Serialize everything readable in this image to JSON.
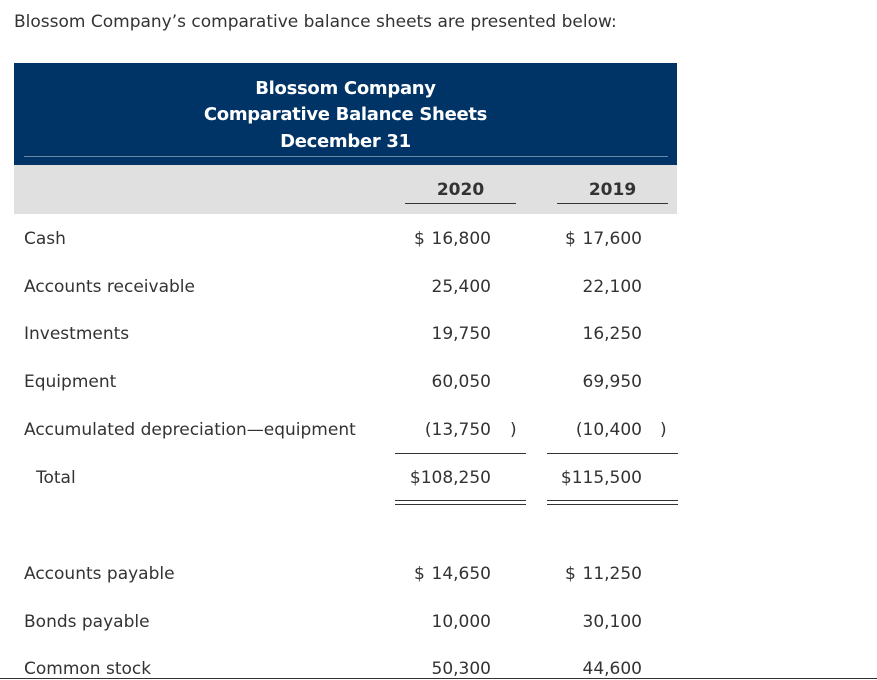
{
  "intro": "Blossom Company’s comparative balance sheets are presented below:",
  "header": {
    "company": "Blossom Company",
    "title": "Comparative Balance Sheets",
    "date": "December 31"
  },
  "columns": [
    "2020",
    "2019"
  ],
  "assets": [
    {
      "label": "Cash",
      "cells": [
        {
          "prefix": "$",
          "amount": "16,800"
        },
        {
          "prefix": "$",
          "amount": "17,600"
        }
      ]
    },
    {
      "label": "Accounts receivable",
      "cells": [
        {
          "amount": "25,400"
        },
        {
          "amount": "22,100"
        }
      ]
    },
    {
      "label": "Investments",
      "cells": [
        {
          "amount": "19,750"
        },
        {
          "amount": "16,250"
        }
      ]
    },
    {
      "label": "Equipment",
      "cells": [
        {
          "amount": "60,050"
        },
        {
          "amount": "69,950"
        }
      ]
    },
    {
      "label": "Accumulated depreciation—equipment",
      "cells": [
        {
          "amount": "(13,750",
          "suffix": ")"
        },
        {
          "amount": "(10,400",
          "suffix": ")"
        }
      ]
    },
    {
      "label": "Total",
      "cells": [
        {
          "amount": "$108,250"
        },
        {
          "amount": "$115,500"
        }
      ]
    }
  ],
  "liabilities": [
    {
      "label": "Accounts payable",
      "cells": [
        {
          "prefix": "$",
          "amount": "14,650"
        },
        {
          "prefix": "$",
          "amount": "11,250"
        }
      ]
    },
    {
      "label": "Bonds payable",
      "cells": [
        {
          "amount": "10,000"
        },
        {
          "amount": "30,100"
        }
      ]
    },
    {
      "label": "Common stock",
      "cells": [
        {
          "amount": "50,300"
        },
        {
          "amount": "44,600"
        }
      ]
    }
  ]
}
